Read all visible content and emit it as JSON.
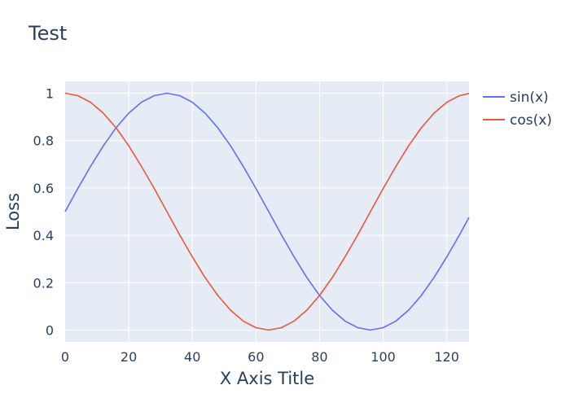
{
  "chart_data": {
    "type": "line",
    "title": "Test",
    "xlabel": "X Axis Title",
    "ylabel": "Loss",
    "xlim": [
      0,
      127
    ],
    "ylim": [
      -0.05,
      1.05
    ],
    "xticks": [
      0,
      20,
      40,
      60,
      80,
      100,
      120
    ],
    "yticks": [
      0,
      0.2,
      0.4,
      0.6,
      0.8,
      1
    ],
    "ytick_labels": [
      "0",
      "0.2",
      "0.4",
      "0.6",
      "0.8",
      "1"
    ],
    "grid": true,
    "legend_position": "top-right outside",
    "x": [
      0,
      4,
      8,
      12,
      16,
      20,
      24,
      28,
      32,
      36,
      40,
      44,
      48,
      52,
      56,
      60,
      64,
      68,
      72,
      76,
      80,
      84,
      88,
      92,
      96,
      100,
      104,
      108,
      112,
      116,
      120,
      124,
      127
    ],
    "series": [
      {
        "name": "sin(x)",
        "color": "#636efa",
        "values": [
          0.5,
          0.598,
          0.691,
          0.778,
          0.854,
          0.916,
          0.962,
          0.99,
          1.0,
          0.99,
          0.962,
          0.916,
          0.854,
          0.778,
          0.691,
          0.598,
          0.5,
          0.402,
          0.309,
          0.222,
          0.146,
          0.084,
          0.038,
          0.01,
          0.0,
          0.01,
          0.038,
          0.084,
          0.146,
          0.222,
          0.309,
          0.402,
          0.476
        ]
      },
      {
        "name": "cos(x)",
        "color": "#ef553b",
        "values": [
          1.0,
          0.99,
          0.962,
          0.916,
          0.854,
          0.778,
          0.691,
          0.598,
          0.5,
          0.402,
          0.309,
          0.222,
          0.146,
          0.084,
          0.038,
          0.01,
          0.0,
          0.01,
          0.038,
          0.084,
          0.146,
          0.222,
          0.309,
          0.402,
          0.5,
          0.598,
          0.691,
          0.778,
          0.854,
          0.916,
          0.962,
          0.99,
          0.999
        ]
      }
    ]
  },
  "colors": {
    "plot_background": "#e5ecf6",
    "grid": "#ffffff",
    "text": "#2a3f5f"
  }
}
